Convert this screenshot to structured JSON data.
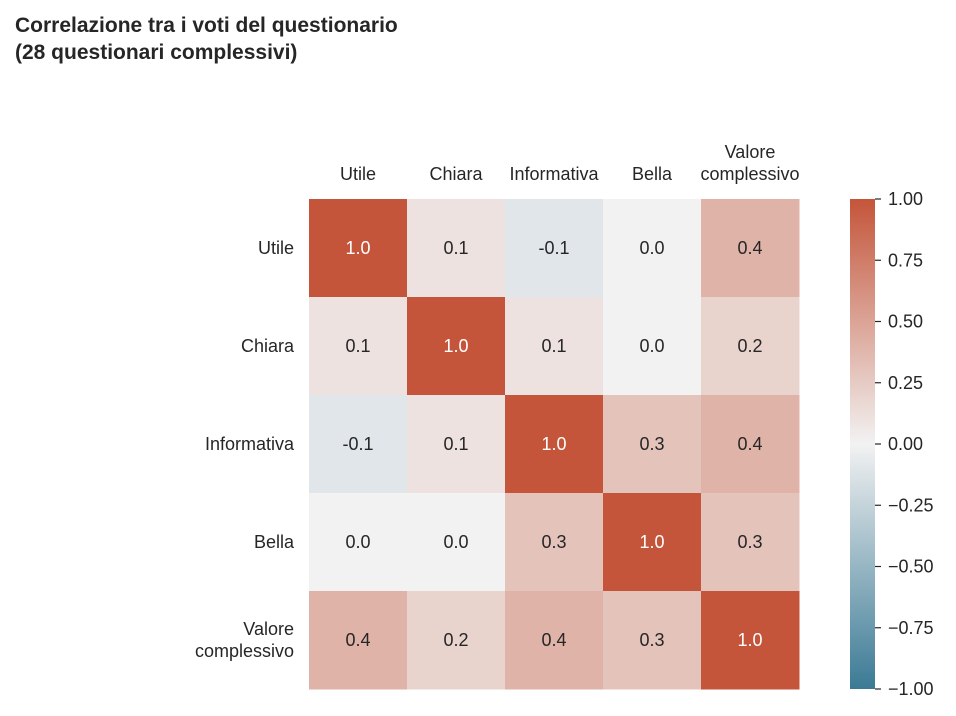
{
  "title_lines": [
    "Correlazione tra i voti del questionario",
    "(28 questionari complessivi)"
  ],
  "chart_data": {
    "type": "heatmap",
    "title": "Correlazione tra i voti del questionario (28 questionari complessivi)",
    "col_labels": [
      [
        "Utile"
      ],
      [
        "Chiara"
      ],
      [
        "Informativa"
      ],
      [
        "Bella"
      ],
      [
        "Valore",
        "complessivo"
      ]
    ],
    "row_labels": [
      [
        "Utile"
      ],
      [
        "Chiara"
      ],
      [
        "Informativa"
      ],
      [
        "Bella"
      ],
      [
        "Valore",
        "complessivo"
      ]
    ],
    "values": [
      [
        1.0,
        0.1,
        -0.1,
        0.0,
        0.4
      ],
      [
        0.1,
        1.0,
        0.1,
        0.0,
        0.2
      ],
      [
        -0.1,
        0.1,
        1.0,
        0.3,
        0.4
      ],
      [
        0.0,
        0.0,
        0.3,
        1.0,
        0.3
      ],
      [
        0.4,
        0.2,
        0.4,
        0.3,
        1.0
      ]
    ],
    "cell_labels": [
      [
        "1.0",
        "0.1",
        "-0.1",
        "0.0",
        "0.4"
      ],
      [
        "0.1",
        "1.0",
        "0.1",
        "0.0",
        "0.2"
      ],
      [
        "-0.1",
        "0.1",
        "1.0",
        "0.3",
        "0.4"
      ],
      [
        "0.0",
        "0.0",
        "0.3",
        "1.0",
        "0.3"
      ],
      [
        "0.4",
        "0.2",
        "0.4",
        "0.3",
        "1.0"
      ]
    ],
    "colorbar": {
      "range": [
        -1.0,
        1.0
      ],
      "ticks": [
        1.0,
        0.75,
        0.5,
        0.25,
        0.0,
        -0.25,
        -0.5,
        -0.75,
        -1.0
      ],
      "tick_labels": [
        "1.00",
        "0.75",
        "0.50",
        "0.25",
        "0.00",
        "−0.25",
        "−0.50",
        "−0.75",
        "−1.00"
      ]
    },
    "colors": {
      "negative": "#3b7a95",
      "neutral": "#f2f2f2",
      "positive": "#c4553a"
    }
  }
}
